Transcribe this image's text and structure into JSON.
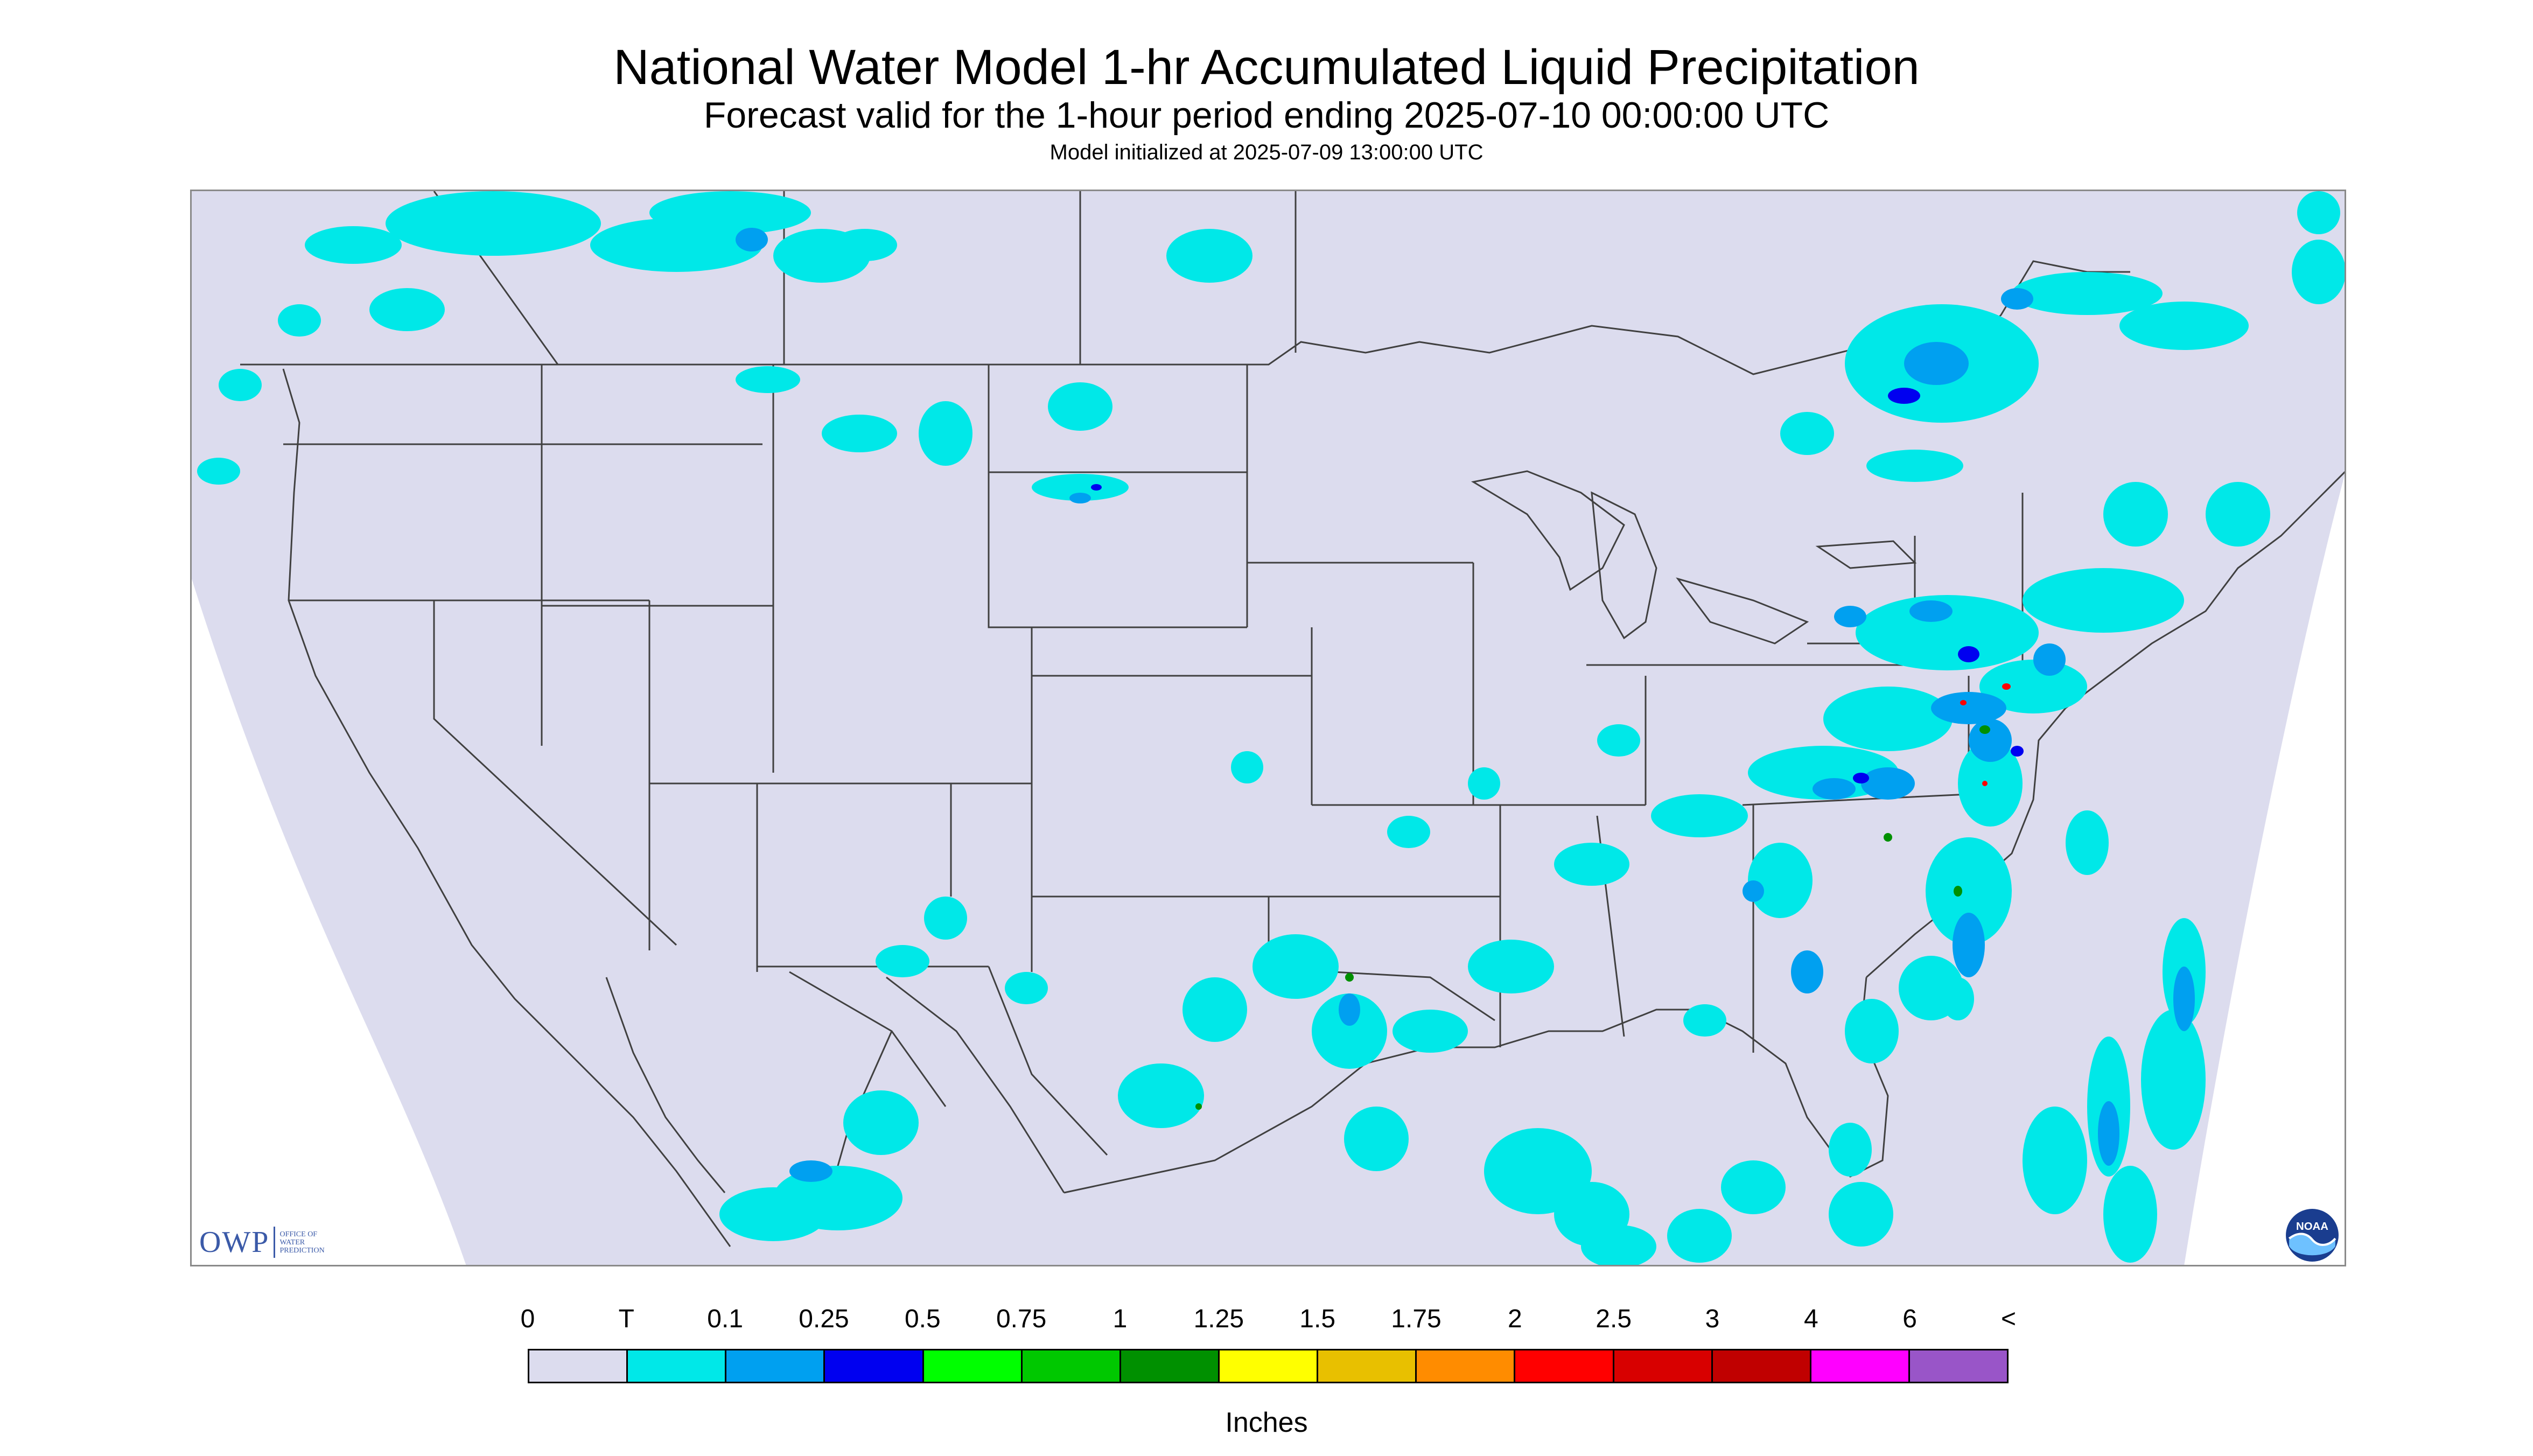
{
  "title": "National Water Model 1-hr Accumulated Liquid Precipitation",
  "subtitle": "Forecast valid for the 1-hour period ending 2025-07-10 00:00:00 UTC",
  "init_line": "Model initialized at 2025-07-09 13:00:00 UTC",
  "logos": {
    "owp_letters": "OWP",
    "owp_text": [
      "OFFICE OF",
      "WATER",
      "PREDICTION"
    ],
    "noaa_text": "NOAA"
  },
  "legend": {
    "labels": [
      "0",
      "T",
      "0.1",
      "0.25",
      "0.5",
      "0.75",
      "1",
      "1.25",
      "1.5",
      "1.75",
      "2",
      "2.5",
      "3",
      "4",
      "6",
      "<"
    ],
    "colors": [
      "#dcdcee",
      "#00e8e8",
      "#00a0f0",
      "#0000f0",
      "#00ff00",
      "#00c800",
      "#009000",
      "#ffff00",
      "#e8c000",
      "#ff8c00",
      "#ff0000",
      "#d80000",
      "#c00000",
      "#ff00ff",
      "#9955c8"
    ],
    "units": "Inches"
  },
  "map_colors": {
    "domain_fill": "#dcdcee",
    "outside_fill": "#ffffff",
    "border_line": "#404040",
    "trace": "#00e8e8",
    "light": "#00a0f0",
    "moderate": "#0000f0",
    "heavy": "#009000",
    "very_heavy": "#ff0000"
  }
}
